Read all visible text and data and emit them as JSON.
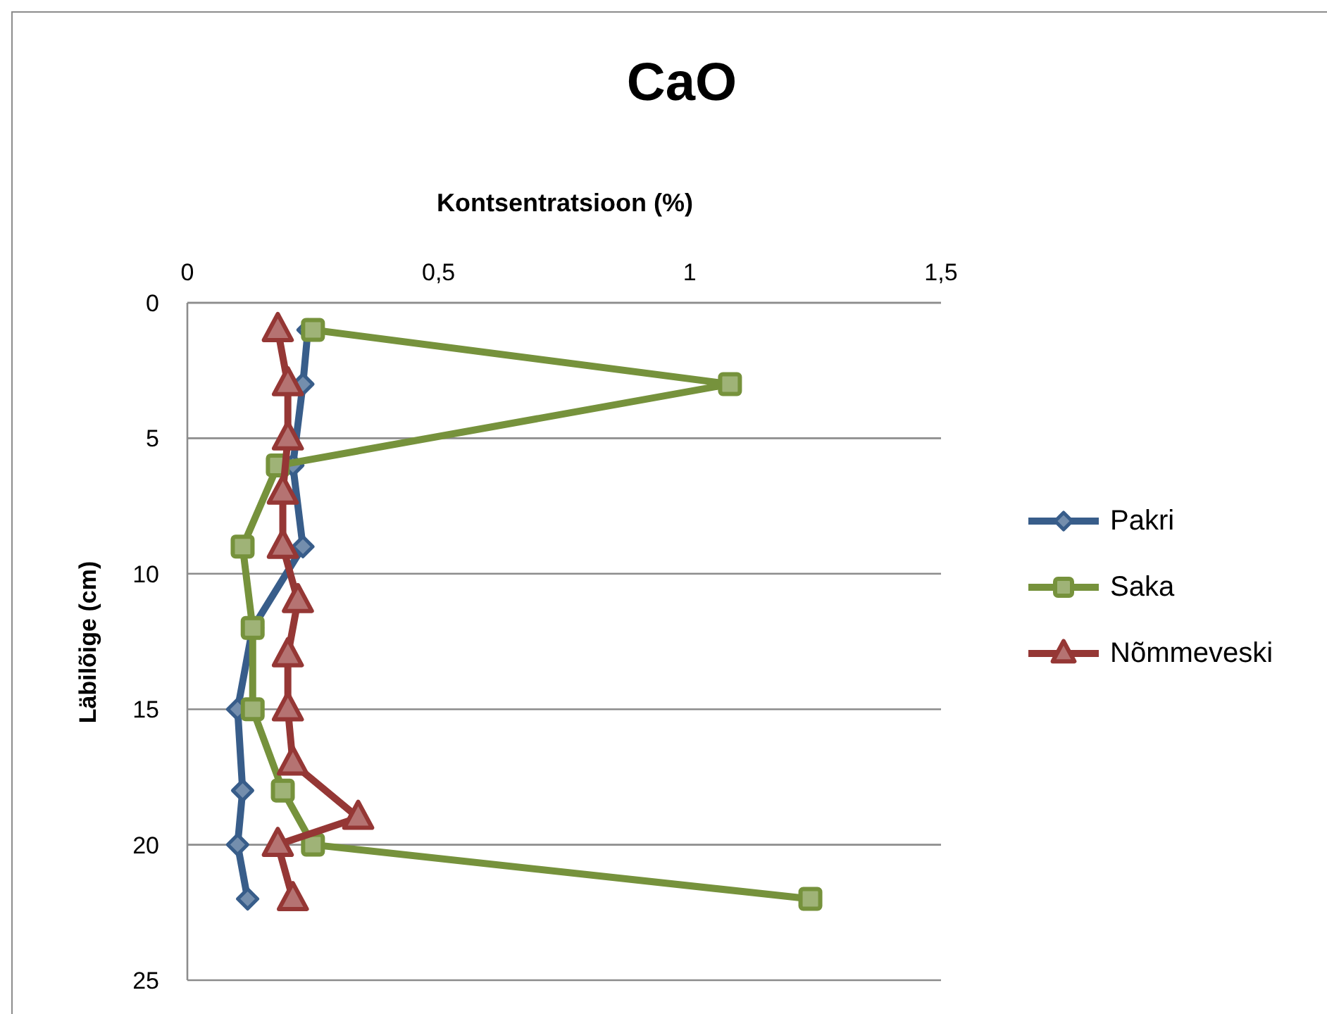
{
  "chart_data": {
    "type": "line",
    "title": "CaO",
    "xlabel": "Kontsentratsioon (%)",
    "ylabel": "Läbilõige (cm)",
    "xlim": [
      0,
      1.5
    ],
    "xticks": [
      0,
      {
        "value": 0.5,
        "label": "0,5"
      },
      1,
      {
        "value": 1.5,
        "label": "1,5"
      }
    ],
    "ylim": [
      25,
      0
    ],
    "yticks": [
      0,
      5,
      10,
      15,
      20,
      25
    ],
    "grid": "y",
    "legend": "right",
    "line_style": "solid",
    "series": [
      {
        "name": "Pakri",
        "color": "#385d8a",
        "marker": "diamond",
        "x": [
          0.24,
          0.23,
          0.21,
          0.23,
          0.13,
          0.1,
          0.11,
          0.1,
          0.12
        ],
        "values": [
          1,
          3,
          6,
          9,
          12,
          15,
          18,
          20,
          22
        ]
      },
      {
        "name": "Saka",
        "color": "#76923c",
        "marker": "square",
        "x": [
          0.25,
          1.08,
          0.18,
          0.11,
          0.13,
          0.13,
          0.19,
          0.25,
          1.24
        ],
        "values": [
          1,
          3,
          6,
          9,
          12,
          15,
          18,
          20,
          22
        ]
      },
      {
        "name": "Nõmmeveski",
        "color": "#953735",
        "marker": "triangle",
        "x": [
          0.18,
          0.2,
          0.2,
          0.19,
          0.19,
          0.22,
          0.2,
          0.2,
          0.21,
          0.34,
          0.18,
          0.21
        ],
        "values": [
          1,
          3,
          5,
          7,
          9,
          11,
          13,
          15,
          17,
          19,
          20,
          22
        ]
      }
    ]
  }
}
